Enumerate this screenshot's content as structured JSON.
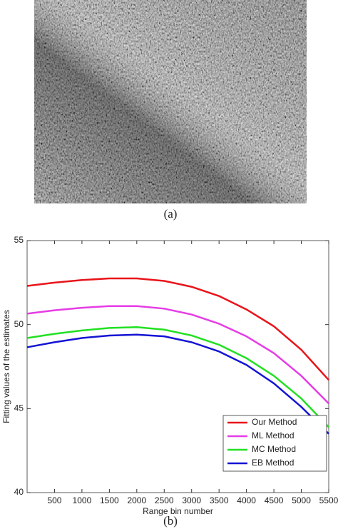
{
  "image_caption": "(a)",
  "chart_caption": "(b)",
  "chart_data": {
    "type": "line",
    "xlabel": "Range bin number",
    "ylabel": "Fitting values of the estimates",
    "x": [
      0,
      500,
      1000,
      1500,
      2000,
      2500,
      3000,
      3500,
      4000,
      4500,
      5000,
      5500
    ],
    "series": [
      {
        "name": "Our Method",
        "color": "#e8141a",
        "values": [
          52.3,
          52.5,
          52.65,
          52.75,
          52.75,
          52.6,
          52.25,
          51.7,
          50.9,
          49.9,
          48.5,
          46.7
        ]
      },
      {
        "name": "ML Method",
        "color": "#e63ce6",
        "values": [
          50.65,
          50.85,
          51.0,
          51.1,
          51.1,
          50.95,
          50.6,
          50.05,
          49.3,
          48.3,
          46.95,
          45.3
        ]
      },
      {
        "name": "MC Method",
        "color": "#22e022",
        "values": [
          49.2,
          49.45,
          49.65,
          49.8,
          49.85,
          49.7,
          49.35,
          48.8,
          48.0,
          46.95,
          45.6,
          43.9
        ]
      },
      {
        "name": "EB Method",
        "color": "#1414d4",
        "values": [
          48.65,
          48.95,
          49.2,
          49.35,
          49.4,
          49.3,
          48.95,
          48.4,
          47.6,
          46.5,
          45.1,
          43.5
        ]
      }
    ],
    "xlim": [
      0,
      5500
    ],
    "xticks": [
      500,
      1000,
      1500,
      2000,
      2500,
      3000,
      3500,
      4000,
      4500,
      5000,
      5500
    ],
    "ylim": [
      40,
      55
    ],
    "yticks": [
      40,
      45,
      50,
      55
    ],
    "legend": "lower right",
    "grid": false
  }
}
